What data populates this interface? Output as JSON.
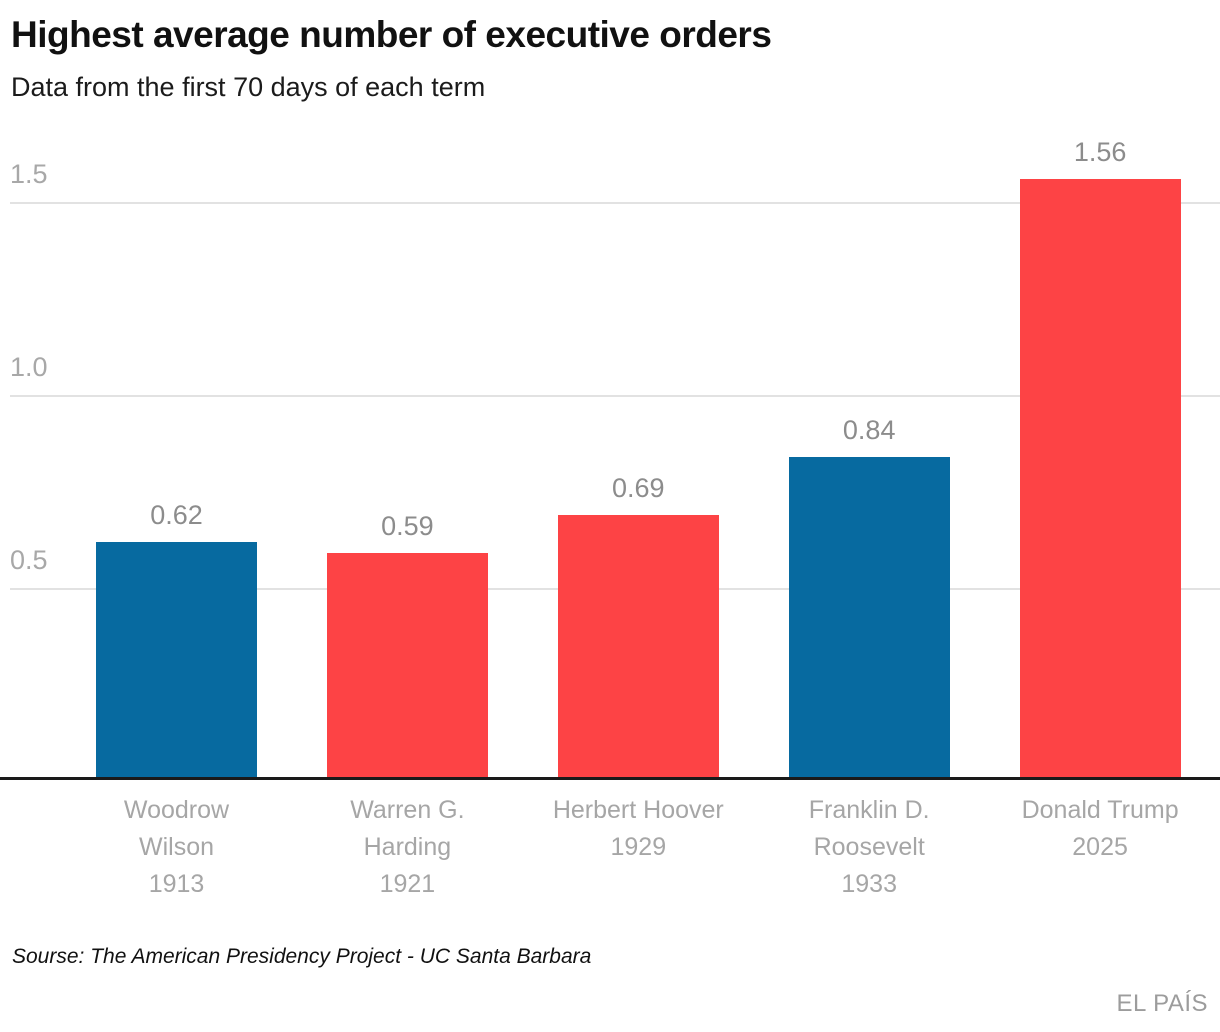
{
  "chart_data": {
    "type": "bar",
    "title": "Highest average number of executive orders",
    "subtitle": "Data from the first 70 days of each term",
    "categories": [
      "Woodrow Wilson 1913",
      "Warren G. Harding 1921",
      "Herbert Hoover 1929",
      "Franklin D. Roosevelt 1933",
      "Donald Trump 2025"
    ],
    "label_lines": [
      [
        "Woodrow",
        "Wilson",
        "1913"
      ],
      [
        "Warren G.",
        "Harding",
        "1921"
      ],
      [
        "Herbert Hoover",
        "1929"
      ],
      [
        "Franklin D.",
        "Roosevelt",
        "1933"
      ],
      [
        "Donald Trump",
        "2025"
      ]
    ],
    "values": [
      0.62,
      0.59,
      0.69,
      0.84,
      1.56
    ],
    "value_labels": [
      "0.62",
      "0.59",
      "0.69",
      "0.84",
      "1.56"
    ],
    "bar_colors": [
      "#076aa0",
      "#fd4345",
      "#fd4345",
      "#076aa0",
      "#fd4345"
    ],
    "yticks": [
      0.5,
      1.0,
      1.5
    ],
    "ytick_labels": [
      "0.5",
      "1.0",
      "1.5"
    ],
    "ylim": [
      0,
      1.66
    ],
    "xlabel": "",
    "ylabel": "",
    "grid": true,
    "legend": false
  },
  "footer": {
    "source": "Sourse: The American Presidency Project - UC Santa Barbara",
    "brand": "EL PAÍS"
  },
  "colors": {
    "bar_blue": "#076aa0",
    "bar_red": "#fd4345",
    "gridline": "#e2e2e2",
    "axis": "#1a1a1a",
    "tick_label": "#a8a8a8",
    "value_label": "#8c8c8c",
    "category_label": "#a6a6a6",
    "title_text": "#111111",
    "brand_text": "#9c9c9c"
  }
}
